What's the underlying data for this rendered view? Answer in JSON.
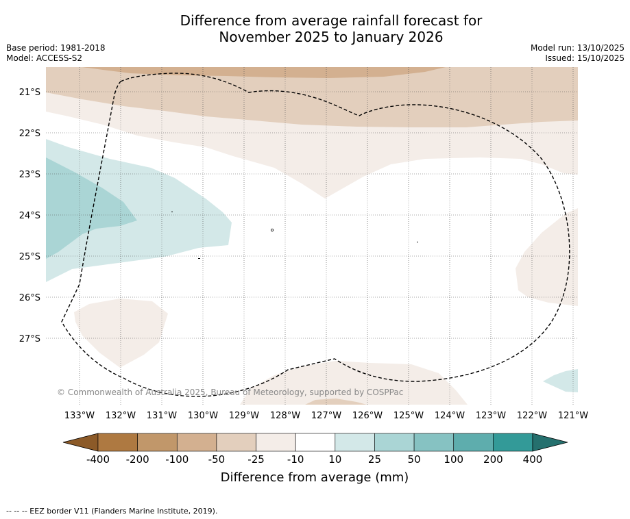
{
  "title": {
    "line1": "Difference from average rainfall forecast for",
    "line2": "November 2025 to January 2026"
  },
  "meta_left": {
    "base_period": "Base period: 1981-2018",
    "model": "Model: ACCESS-S2"
  },
  "meta_right": {
    "model_run": "Model run: 13/10/2025",
    "issued": "Issued: 15/10/2025"
  },
  "map": {
    "lat_labels": [
      "21°S",
      "22°S",
      "23°S",
      "24°S",
      "25°S",
      "26°S",
      "27°S"
    ],
    "lon_labels": [
      "133°W",
      "132°W",
      "131°W",
      "130°W",
      "129°W",
      "128°W",
      "127°W",
      "126°W",
      "125°W",
      "124°W",
      "123°W",
      "122°W",
      "121°W"
    ],
    "copyright": "© Commonwealth of Australia 2025, Bureau of Meteorology, supported by COSPPac",
    "region_legend": {
      "dry_weak": "-25 to -10 mm",
      "dry_moderate": "-50 to -25 mm",
      "dry_strong": "-100 to -50 mm",
      "wet_weak": "10 to 25 mm",
      "wet_moderate": "25 to 50 mm"
    }
  },
  "colorbar": {
    "ticks": [
      "-400",
      "-200",
      "-100",
      "-50",
      "-25",
      "-10",
      "10",
      "25",
      "50",
      "100",
      "200",
      "400"
    ],
    "colors": [
      "#8c5a28",
      "#ae7941",
      "#c1976a",
      "#d3b090",
      "#e3cfbd",
      "#f4ede8",
      "#ffffff",
      "#d3e8e8",
      "#aad5d5",
      "#86c2c2",
      "#5eadad",
      "#339a98",
      "#25706e"
    ],
    "label": "Difference from average (mm)"
  },
  "footnote": "--  --  -- EEZ border V11 (Flanders Marine Institute, 2019)."
}
